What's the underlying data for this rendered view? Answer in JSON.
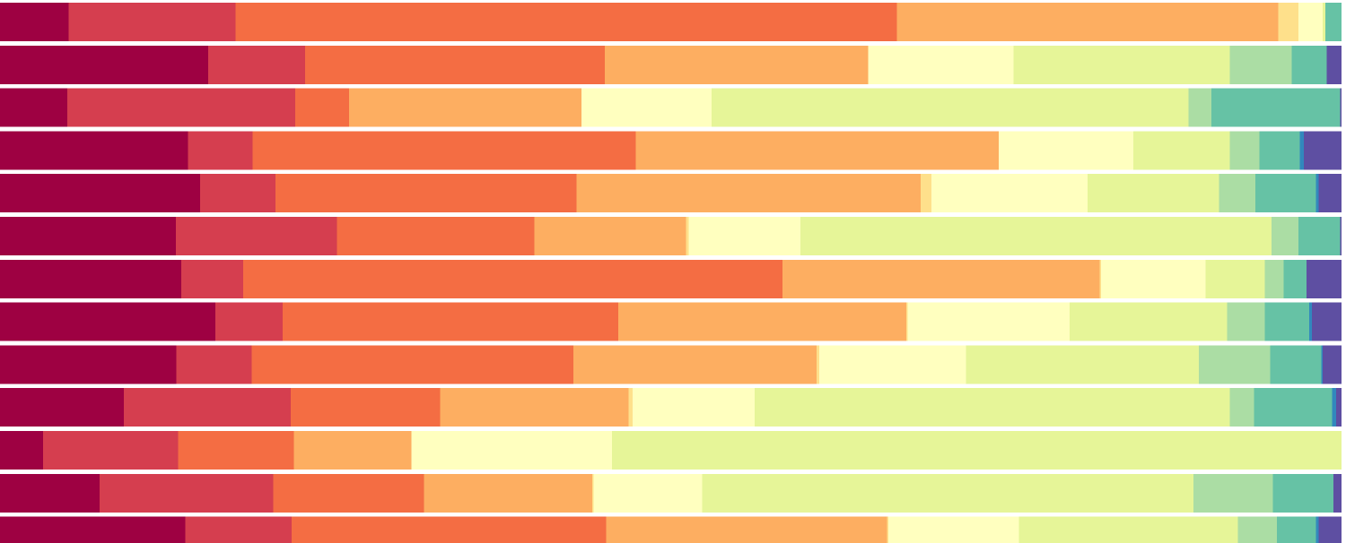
{
  "chart_data": {
    "type": "bar",
    "orientation": "horizontal",
    "stacked": "100%",
    "title": "",
    "xlabel": "",
    "ylabel": "",
    "legend": "none",
    "grid": false,
    "axes_visible": false,
    "colors": [
      "#9e0142",
      "#d53e4f",
      "#f46d43",
      "#fdae61",
      "#fee08b",
      "#ffffbf",
      "#e6f598",
      "#abdda4",
      "#66c2a5",
      "#3288bd",
      "#5e4fa2"
    ],
    "rows": [
      [
        5.1,
        12.4,
        49.1,
        28.3,
        1.5,
        1.8,
        0.2,
        0,
        1.2,
        0,
        0
      ],
      [
        15.5,
        7.2,
        22.3,
        19.6,
        0,
        10.8,
        16.1,
        4.6,
        2.6,
        0,
        1.1
      ],
      [
        5.0,
        17.0,
        4.0,
        17.3,
        0,
        9.7,
        35.5,
        1.7,
        9.6,
        0,
        0.1
      ],
      [
        14.0,
        4.8,
        28.5,
        27.0,
        0,
        10.0,
        7.2,
        2.2,
        3.0,
        0.3,
        2.8
      ],
      [
        14.9,
        5.6,
        22.4,
        25.6,
        0.8,
        11.6,
        9.8,
        2.7,
        4.5,
        0.2,
        1.7
      ],
      [
        13.1,
        12.0,
        14.7,
        11.3,
        0.2,
        8.3,
        35.1,
        2.0,
        3.1,
        0,
        0.1
      ],
      [
        13.5,
        4.6,
        40.1,
        23.6,
        0.1,
        7.8,
        4.4,
        1.4,
        1.7,
        0,
        2.6
      ],
      [
        16.0,
        5.0,
        24.9,
        21.4,
        0.1,
        12.0,
        11.7,
        2.8,
        3.3,
        0.2,
        2.2
      ],
      [
        13.1,
        5.6,
        23.9,
        18.1,
        0.2,
        10.9,
        17.3,
        5.3,
        3.8,
        0.1,
        1.4
      ],
      [
        9.2,
        12.4,
        11.1,
        14.0,
        0.3,
        9.1,
        35.3,
        1.8,
        5.8,
        0.3,
        0.4
      ],
      [
        3.2,
        10.0,
        8.6,
        8.7,
        0,
        14.9,
        54.1,
        0,
        0,
        0,
        0
      ],
      [
        7.4,
        12.9,
        11.2,
        12.5,
        0.1,
        8.1,
        36.5,
        5.9,
        4.5,
        0,
        0.6
      ],
      [
        13.8,
        7.9,
        23.4,
        20.9,
        0.1,
        9.7,
        16.3,
        2.9,
        2.9,
        0.2,
        1.7
      ]
    ]
  }
}
